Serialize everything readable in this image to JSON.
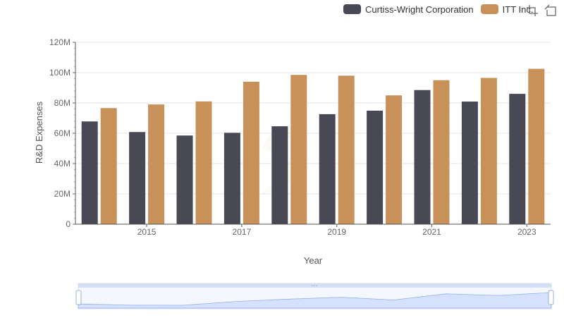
{
  "chart_data": {
    "type": "bar",
    "xlabel": "Year",
    "ylabel": "R&D Expenses",
    "categories": [
      "2014",
      "2015",
      "2016",
      "2017",
      "2018",
      "2019",
      "2020",
      "2021",
      "2022",
      "2023"
    ],
    "x_tick_labels": [
      "2015",
      "2017",
      "2019",
      "2021",
      "2023"
    ],
    "y_tick_labels": [
      "0",
      "20M",
      "40M",
      "60M",
      "80M",
      "100M",
      "120M"
    ],
    "ylim": [
      0,
      120000000
    ],
    "grid": true,
    "legend_position": "top-right",
    "series": [
      {
        "name": "Curtiss-Wright Corporation",
        "color": "#484955",
        "values": [
          67800000,
          60800000,
          58500000,
          60300000,
          64600000,
          72600000,
          74900000,
          88500000,
          80900000,
          86000000
        ]
      },
      {
        "name": "ITT Inc.",
        "color": "#c8915a",
        "values": [
          76600000,
          79000000,
          81000000,
          94000000,
          98500000,
          98000000,
          85000000,
          95000000,
          96500000,
          102500000
        ]
      }
    ]
  },
  "legend": {
    "items": [
      {
        "label": "Curtiss-Wright Corporation",
        "color": "#484955"
      },
      {
        "label": "ITT Inc.",
        "color": "#c8915a"
      }
    ]
  },
  "toolbox": {
    "icons": [
      "zoom-icon",
      "restore-icon"
    ]
  },
  "data_zoom": {
    "start_percent": 0,
    "end_percent": 100,
    "fill_color": "#d6e2fb"
  }
}
